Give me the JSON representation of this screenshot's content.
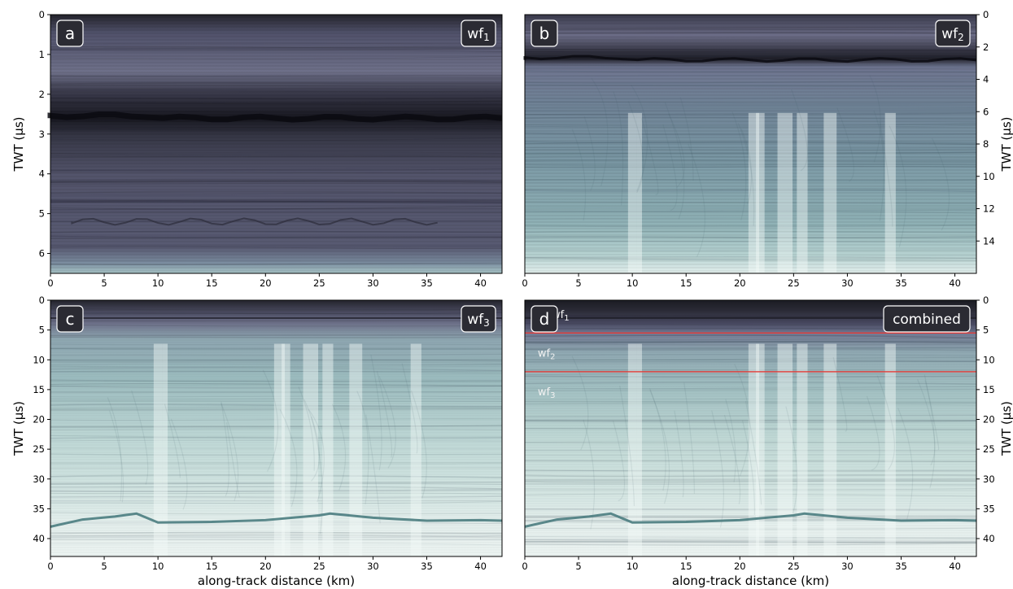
{
  "figure": {
    "xlabel": "along-track distance (km)",
    "ylabel": "TWT (µs)"
  },
  "colors": {
    "dark": "#1e1e26",
    "mid": "#5b5c74",
    "light": "#d6e8e6",
    "pale": "#e6f0ee",
    "interface": "#e53935",
    "label_box": "#2b2b33"
  },
  "chart_data": [
    {
      "id": "a",
      "type": "heatmap",
      "panel_letter": "a",
      "tag": {
        "base": "wf",
        "sub": "1"
      },
      "xlabel": "",
      "ylabel": "TWT (µs)",
      "xlim": [
        0,
        42
      ],
      "ylim": [
        6.5,
        0
      ],
      "xticks": [
        0,
        5,
        10,
        15,
        20,
        25,
        30,
        35,
        40
      ],
      "yticks": [
        0,
        1,
        2,
        3,
        4,
        5,
        6
      ],
      "ylabel_side": "left",
      "surface_reflector_twt": 2.6,
      "deep_reflector_twt": 5.2,
      "palette": "dark"
    },
    {
      "id": "b",
      "type": "heatmap",
      "panel_letter": "b",
      "tag": {
        "base": "wf",
        "sub": "2"
      },
      "xlabel": "",
      "ylabel": "TWT (µs)",
      "xlim": [
        0,
        42
      ],
      "ylim": [
        16,
        0
      ],
      "xticks": [
        0,
        5,
        10,
        15,
        20,
        25,
        30,
        35,
        40
      ],
      "yticks": [
        0,
        2,
        4,
        6,
        8,
        10,
        12,
        14
      ],
      "ylabel_side": "right",
      "surface_reflector_twt": 2.8,
      "palette": "mixed"
    },
    {
      "id": "c",
      "type": "heatmap",
      "panel_letter": "c",
      "tag": {
        "base": "wf",
        "sub": "3"
      },
      "xlabel": "along-track distance (km)",
      "ylabel": "TWT (µs)",
      "xlim": [
        0,
        42
      ],
      "ylim": [
        43,
        0
      ],
      "xticks": [
        0,
        5,
        10,
        15,
        20,
        25,
        30,
        35,
        40
      ],
      "yticks": [
        0,
        5,
        10,
        15,
        20,
        25,
        30,
        35,
        40
      ],
      "ylabel_side": "left",
      "bed_reflector": {
        "x": [
          0,
          3,
          6,
          8,
          10,
          15,
          20,
          25,
          26,
          30,
          35,
          40,
          42
        ],
        "twt": [
          38,
          36.8,
          36.3,
          35.8,
          37.3,
          37.2,
          36.9,
          36.1,
          35.8,
          36.5,
          37.0,
          36.9,
          37.0
        ]
      },
      "palette": "light"
    },
    {
      "id": "d",
      "type": "heatmap",
      "panel_letter": "d",
      "tag": {
        "base": "combined",
        "sub": ""
      },
      "xlabel": "along-track distance (km)",
      "ylabel": "TWT (µs)",
      "xlim": [
        0,
        42
      ],
      "ylim": [
        43,
        0
      ],
      "xticks": [
        0,
        5,
        10,
        15,
        20,
        25,
        30,
        35,
        40
      ],
      "yticks": [
        0,
        5,
        10,
        15,
        20,
        25,
        30,
        35,
        40
      ],
      "ylabel_side": "right",
      "interfaces_twt": [
        5.5,
        12.0
      ],
      "segment_labels": [
        {
          "base": "wf",
          "sub": "1",
          "twt": 2.3,
          "x_km": 2.5
        },
        {
          "base": "wf",
          "sub": "2",
          "twt": 8.8,
          "x_km": 1.2
        },
        {
          "base": "wf",
          "sub": "3",
          "twt": 15.3,
          "x_km": 1.2
        }
      ],
      "bed_reflector": {
        "x": [
          0,
          3,
          6,
          8,
          10,
          15,
          20,
          25,
          26,
          30,
          35,
          40,
          42
        ],
        "twt": [
          38,
          36.8,
          36.3,
          35.8,
          37.3,
          37.2,
          36.9,
          36.1,
          35.8,
          36.5,
          37.0,
          36.9,
          37.0
        ]
      },
      "palette": "light"
    }
  ]
}
